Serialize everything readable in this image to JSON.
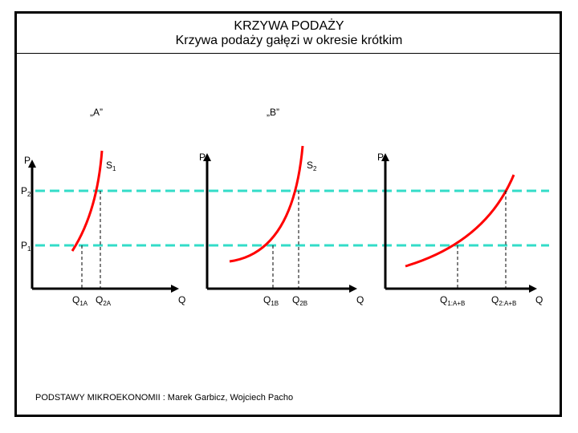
{
  "title": "KRZYWA  PODAŻY",
  "subtitle": "Krzywa   podaży  gałęzi  w  okresie  krótkim",
  "panels": [
    {
      "label": "„A”",
      "price_axis": "P",
      "quantity_axis": "Q",
      "curve": "S",
      "curve_sub": "1",
      "q1": {
        "main": "Q",
        "sub": "1A"
      },
      "q2": {
        "main": "Q",
        "sub": "2A"
      }
    },
    {
      "label": "„B”",
      "price_axis": "P",
      "quantity_axis": "Q",
      "curve": "S",
      "curve_sub": "2",
      "q1": {
        "main": "Q",
        "sub": "1B"
      },
      "q2": {
        "main": "Q",
        "sub": "2B"
      }
    },
    {
      "label": "",
      "price_axis": "P",
      "quantity_axis": "Q",
      "curve": "",
      "curve_sub": "",
      "q1": {
        "main": "Q",
        "sub": "1:A+B"
      },
      "q2": {
        "main": "Q",
        "sub": "2:A+B"
      }
    }
  ],
  "price_levels": [
    {
      "main": "P",
      "sub": "2"
    },
    {
      "main": "P",
      "sub": "1"
    }
  ],
  "footer": "PODSTAWY  MIKROEKONOMII : Marek  Garbicz, Wojciech  Pacho",
  "colors": {
    "axes": "#000000",
    "curves": "#ff0000",
    "price_lines": "#33dcc8",
    "guides": "#000000"
  }
}
